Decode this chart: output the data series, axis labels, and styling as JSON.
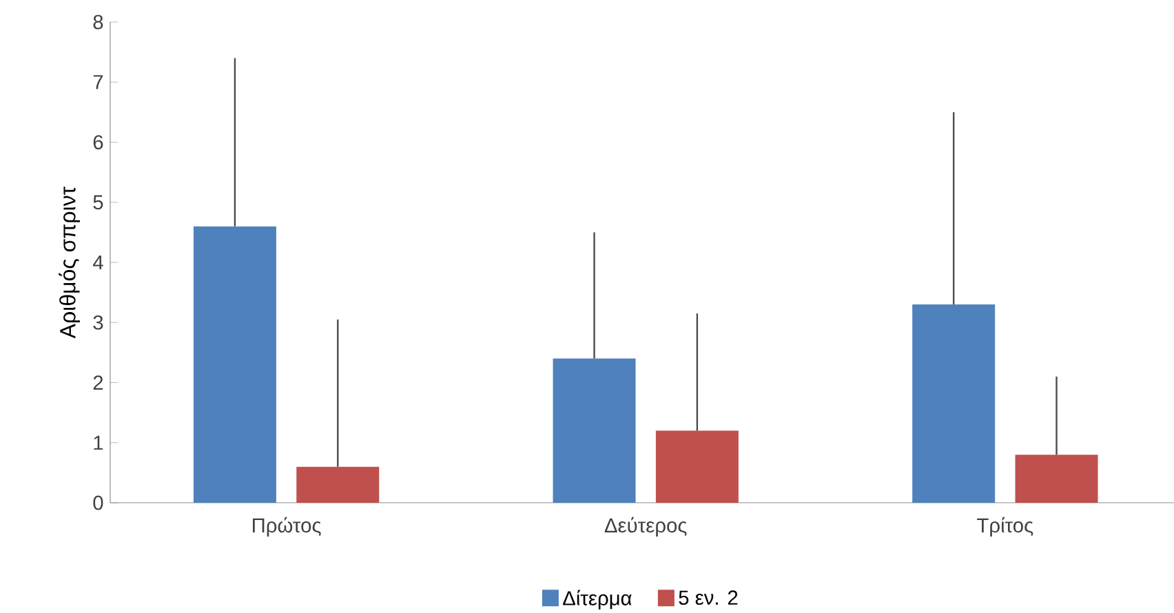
{
  "chart_data": {
    "type": "bar",
    "ylabel": "Αριθμός σπριντ",
    "categories": [
      "Πρώτος",
      "Δεύτερος",
      "Τρίτος"
    ],
    "series": [
      {
        "name": "Δίτερμα",
        "color": "#4f81bd",
        "values": [
          4.6,
          2.4,
          3.3
        ],
        "errors": [
          [
            4.6,
            7.4
          ],
          [
            2.4,
            4.5
          ],
          [
            3.3,
            6.5
          ]
        ]
      },
      {
        "name": "5 εν. 2",
        "color": "#c0504d",
        "values": [
          0.6,
          1.2,
          0.8
        ],
        "errors": [
          [
            0.6,
            3.05
          ],
          [
            1.2,
            3.15
          ],
          [
            0.8,
            2.1
          ]
        ]
      }
    ],
    "ylim": [
      0,
      8
    ],
    "yticks": [
      0,
      1,
      2,
      3,
      4,
      5,
      6,
      7,
      8
    ],
    "grid": false,
    "legend": "bottom"
  }
}
